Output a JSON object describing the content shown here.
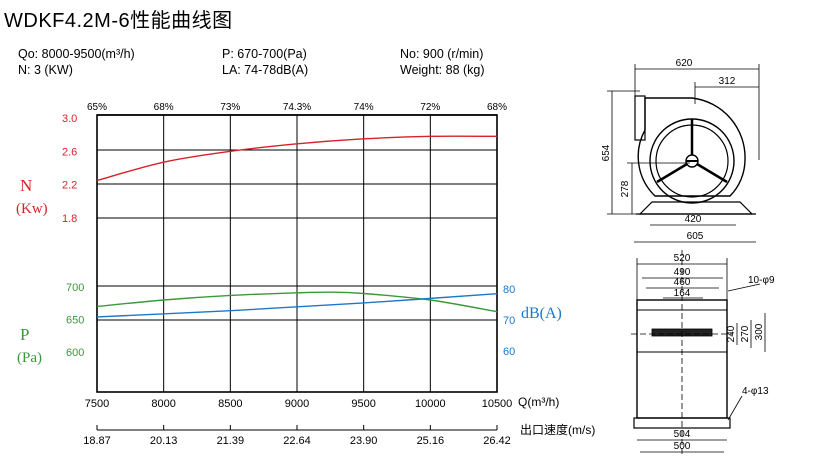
{
  "title": "WDKF4.2M-6性能曲线图",
  "specs": {
    "flow": "Qo: 8000-9500(m³/h)",
    "power": "N: 3 (KW)",
    "pressure": "P: 670-700(Pa)",
    "noise": "LA: 74-78dB(A)",
    "speed": "No: 900 (r/min)",
    "weight": "Weight: 88 (kg)"
  },
  "axis_labels": {
    "N_symbol": "N",
    "N_unit": "(Kw)",
    "P_symbol": "P",
    "P_unit": "(Pa)",
    "dB_label": "dB(A)",
    "Q_label": "Q(m³/h)",
    "velocity_label": "出口速度(m/s)"
  },
  "colors": {
    "power": "#d4242b",
    "pressure": "#3a9a3a",
    "noise": "#1f77c8",
    "grid": "#000000"
  },
  "chart_data": {
    "type": "line",
    "x_label": "Q(m³/h)",
    "x": [
      7500,
      8000,
      8500,
      9000,
      9500,
      10000,
      10500
    ],
    "xlim": [
      7500,
      10500
    ],
    "efficiency_ticks": [
      "65%",
      "68%",
      "73%",
      "74.3%",
      "74%",
      "72%",
      "68%"
    ],
    "velocity_ticks": [
      "18.87",
      "20.13",
      "21.39",
      "22.64",
      "23.90",
      "25.16",
      "26.42"
    ],
    "power_ticks": [
      "3.0",
      "2.6",
      "2.2",
      "1.8"
    ],
    "pressure_ticks": [
      "700",
      "650",
      "600"
    ],
    "noise_ticks": [
      "80",
      "70",
      "60"
    ],
    "series": [
      {
        "name": "N",
        "axis": "power",
        "ylim": [
          1.7,
          3.05
        ],
        "x": [
          7500,
          8000,
          8500,
          9000,
          9500,
          10000,
          10500
        ],
        "y": [
          2.25,
          2.47,
          2.6,
          2.69,
          2.75,
          2.78,
          2.78
        ]
      },
      {
        "name": "P",
        "axis": "pressure",
        "x": [
          7500,
          8000,
          8500,
          9000,
          9250,
          9500,
          10000,
          10500
        ],
        "y": [
          670,
          680,
          687,
          691,
          692,
          690,
          680,
          662
        ]
      },
      {
        "name": "dB(A)",
        "axis": "noise",
        "x": [
          7500,
          8500,
          9500,
          10500
        ],
        "y": [
          71,
          73,
          75.5,
          78.5
        ]
      }
    ]
  },
  "drawing_top": {
    "dims": [
      "620",
      "312",
      "654",
      "278",
      "420",
      "605"
    ]
  },
  "drawing_side": {
    "dims": [
      "520",
      "490",
      "460",
      "164",
      "10-φ9",
      "240",
      "270",
      "300",
      "4-φ13",
      "504",
      "500"
    ]
  }
}
